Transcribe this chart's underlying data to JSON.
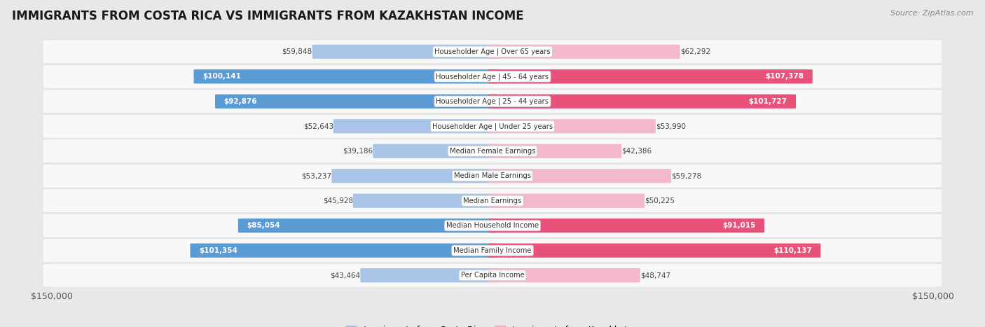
{
  "title": "IMMIGRANTS FROM COSTA RICA VS IMMIGRANTS FROM KAZAKHSTAN INCOME",
  "source": "Source: ZipAtlas.com",
  "categories": [
    "Per Capita Income",
    "Median Family Income",
    "Median Household Income",
    "Median Earnings",
    "Median Male Earnings",
    "Median Female Earnings",
    "Householder Age | Under 25 years",
    "Householder Age | 25 - 44 years",
    "Householder Age | 45 - 64 years",
    "Householder Age | Over 65 years"
  ],
  "costa_rica_values": [
    43464,
    101354,
    85054,
    45928,
    53237,
    39186,
    52643,
    92876,
    100141,
    59848
  ],
  "kazakhstan_values": [
    48747,
    110137,
    91015,
    50225,
    59278,
    42386,
    53990,
    101727,
    107378,
    62292
  ],
  "costa_rica_labels": [
    "$43,464",
    "$101,354",
    "$85,054",
    "$45,928",
    "$53,237",
    "$39,186",
    "$52,643",
    "$92,876",
    "$100,141",
    "$59,848"
  ],
  "kazakhstan_labels": [
    "$48,747",
    "$110,137",
    "$91,015",
    "$50,225",
    "$59,278",
    "$42,386",
    "$53,990",
    "$101,727",
    "$107,378",
    "$62,292"
  ],
  "costa_rica_color_light": "#aac4e8",
  "costa_rica_color_dark": "#5b9bd5",
  "kazakhstan_color_light": "#f4b8cc",
  "kazakhstan_color_dark": "#e8527a",
  "max_value": 150000,
  "threshold": 70000,
  "legend_costa_rica": "Immigrants from Costa Rica",
  "legend_kazakhstan": "Immigrants from Kazakhstan",
  "xlabel_left": "$150,000",
  "xlabel_right": "$150,000",
  "row_bg_odd": "#f4f4f4",
  "row_bg_even": "#ebebeb",
  "fig_bg": "#e8e8e8"
}
